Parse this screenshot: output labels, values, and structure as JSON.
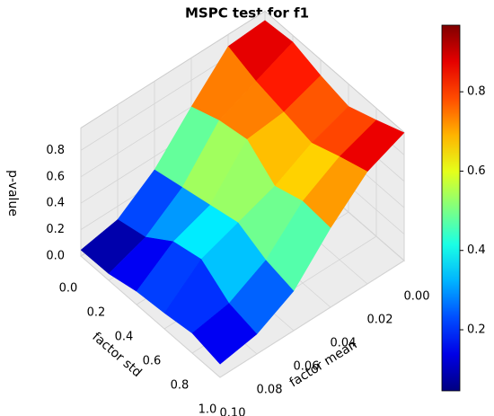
{
  "chart_data": {
    "type": "surface3d",
    "title": "MSPC test for f1",
    "xlabel": "factor mean",
    "ylabel": "factor std",
    "zlabel": "p-value",
    "x": [
      0,
      0.02,
      0.04,
      0.06,
      0.08,
      0.1
    ],
    "y": [
      0,
      0.2,
      0.4,
      0.6,
      0.8,
      1
    ],
    "z": [
      [
        0.9,
        0.92,
        0.85,
        0.8,
        0.88,
        0.968
      ],
      [
        0.88,
        0.8,
        0.75,
        0.7,
        0.78,
        0.85
      ],
      [
        0.6,
        0.68,
        0.72,
        0.55,
        0.62,
        0.6
      ],
      [
        0.3,
        0.35,
        0.4,
        0.45,
        0.35,
        0.3
      ],
      [
        0.1,
        0.15,
        0.3,
        0.35,
        0.2,
        0.15
      ],
      [
        0.046,
        0.05,
        0.1,
        0.12,
        0.15,
        0.1
      ]
    ],
    "xlim": [
      0,
      0.1
    ],
    "ylim": [
      0,
      1
    ],
    "zlim": [
      0,
      0.97
    ],
    "xticks": [
      {
        "value": 0,
        "label": "0.00"
      },
      {
        "value": 0.02,
        "label": "0.02"
      },
      {
        "value": 0.04,
        "label": "0.04"
      },
      {
        "value": 0.06,
        "label": "0.06"
      },
      {
        "value": 0.08,
        "label": "0.08"
      },
      {
        "value": 0.1,
        "label": "0.10"
      }
    ],
    "yticks": [
      {
        "value": 0,
        "label": "0.0"
      },
      0.2,
      0.4,
      0.6,
      0.8,
      {
        "value": 1,
        "label": "1.0"
      }
    ],
    "zticks": [
      {
        "value": 0,
        "label": "0.0"
      },
      0.2,
      0.4,
      0.6,
      0.8
    ],
    "colormap": "jet",
    "clim": [
      0.046,
      0.968
    ],
    "cticks": [
      0.2,
      0.4,
      0.6,
      0.8
    ],
    "grid": true
  }
}
